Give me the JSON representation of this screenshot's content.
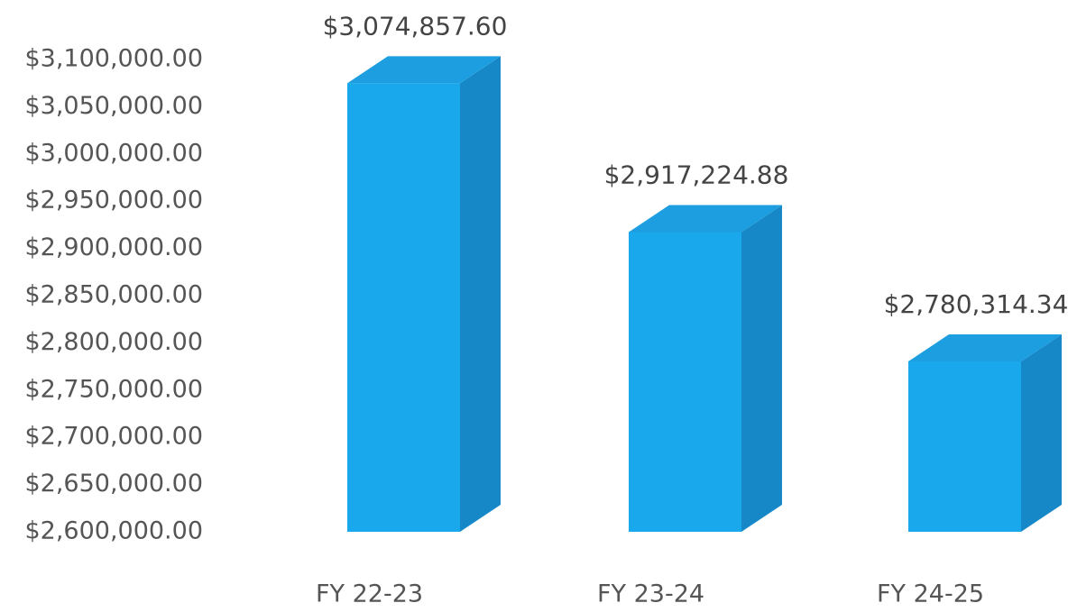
{
  "chart_data": {
    "type": "bar3d",
    "categories": [
      "FY 22-23",
      "FY 23-24",
      "FY 24-25"
    ],
    "values": [
      3074857.6,
      2917224.88,
      2780314.34
    ],
    "value_labels": [
      "$3,074,857.60",
      "$2,917,224.88",
      "$2,780,314.34"
    ],
    "color": "#1aa8ec",
    "ylim": [
      2600000,
      3100000
    ],
    "yticks": [
      {
        "value": 2600000,
        "label": "$2,600,000.00"
      },
      {
        "value": 2650000,
        "label": "$2,650,000.00"
      },
      {
        "value": 2700000,
        "label": "$2,700,000.00"
      },
      {
        "value": 2750000,
        "label": "$2,750,000.00"
      },
      {
        "value": 2800000,
        "label": "$2,800,000.00"
      },
      {
        "value": 2850000,
        "label": "$2,850,000.00"
      },
      {
        "value": 2900000,
        "label": "$2,900,000.00"
      },
      {
        "value": 2950000,
        "label": "$2,950,000.00"
      },
      {
        "value": 3000000,
        "label": "$3,000,000.00"
      },
      {
        "value": 3050000,
        "label": "$3,050,000.00"
      },
      {
        "value": 3100000,
        "label": "$3,100,000.00"
      }
    ],
    "grid": false
  }
}
